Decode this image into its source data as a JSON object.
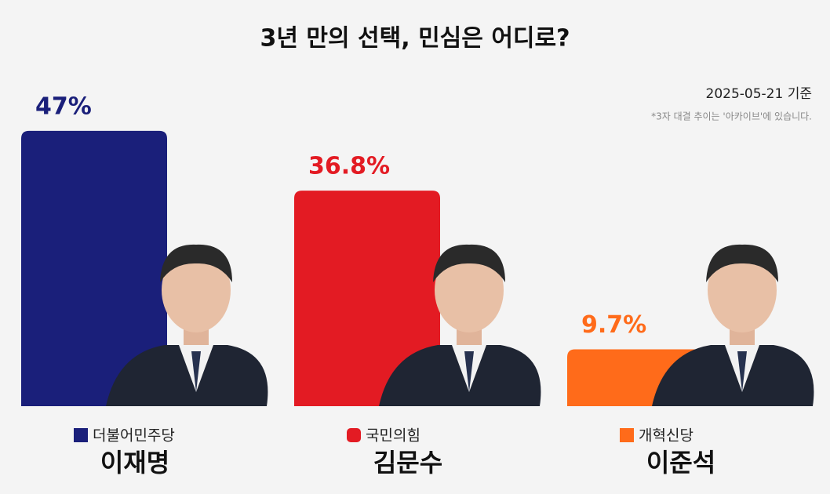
{
  "chart_data": {
    "type": "bar",
    "title": "3년 만의 선택, 민심은 어디로?",
    "subtitle": "2025-05-21 기준",
    "note": "*3자 대결 추이는 '아카이브'에 있습니다.",
    "categories": [
      "이재명",
      "김문수",
      "이준석"
    ],
    "parties": [
      "더불어민주당",
      "국민의힘",
      "개혁신당"
    ],
    "values": [
      47,
      36.8,
      9.7
    ],
    "value_labels": [
      "47%",
      "36.8%",
      "9.7%"
    ],
    "colors": [
      "#1a1f7a",
      "#e31b23",
      "#ff6b1a"
    ]
  }
}
